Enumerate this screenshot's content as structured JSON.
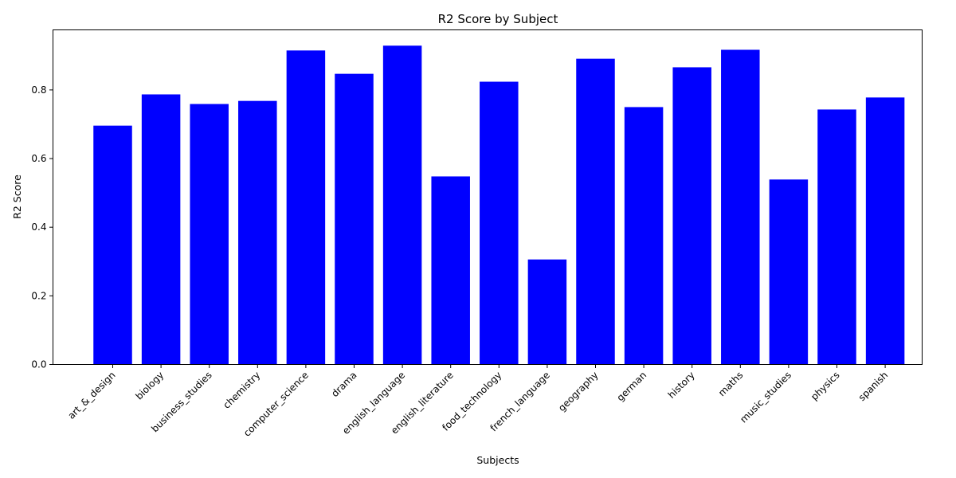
{
  "chart_data": {
    "type": "bar",
    "title": "R2 Score by Subject",
    "xlabel": "Subjects",
    "ylabel": "R2 Score",
    "ylim": [
      0,
      0.975
    ],
    "yticks": [
      "0.0",
      "0.2",
      "0.4",
      "0.6",
      "0.8"
    ],
    "ytick_values": [
      0,
      0.2,
      0.4,
      0.6,
      0.8
    ],
    "grid": false,
    "bar_color": "#0000ff",
    "categories": [
      "art_&_design",
      "biology",
      "business_studies",
      "chemistry",
      "computer_science",
      "drama",
      "english_language",
      "english_literature",
      "food_technology",
      "french_language",
      "geography",
      "german",
      "history",
      "maths",
      "music_studies",
      "physics",
      "spanish"
    ],
    "values": [
      0.696,
      0.787,
      0.759,
      0.768,
      0.915,
      0.847,
      0.929,
      0.548,
      0.824,
      0.306,
      0.891,
      0.75,
      0.866,
      0.917,
      0.539,
      0.743,
      0.778
    ]
  }
}
